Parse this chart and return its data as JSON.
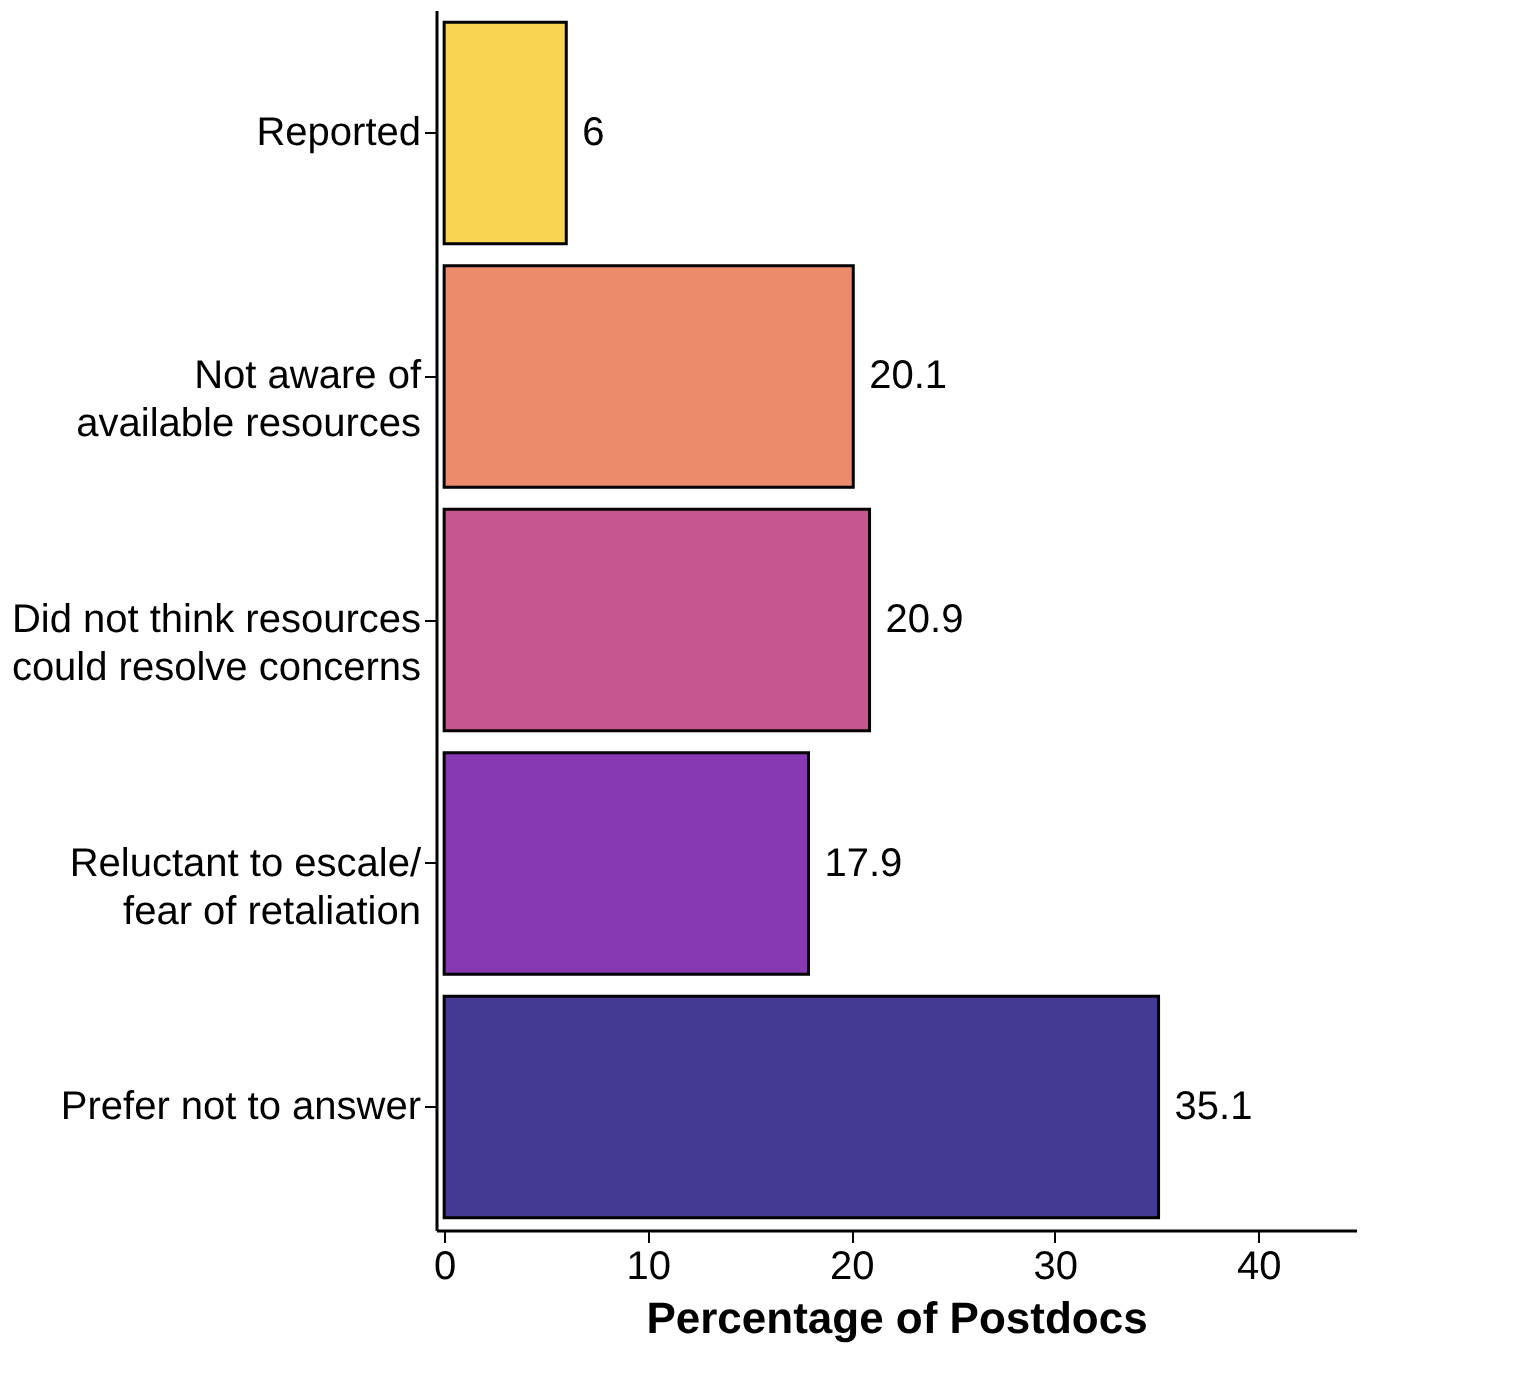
{
  "chart_data": {
    "type": "bar",
    "orientation": "horizontal",
    "xlabel": "Percentage of Postdocs",
    "categories": [
      "Reported",
      "Not aware of\navailable resources",
      "Did not think resources\ncould resolve concerns",
      "Reluctant to escale/\nfear of retaliation",
      "Prefer not to answer"
    ],
    "values": [
      6,
      20.1,
      20.9,
      17.9,
      35.1
    ],
    "colors": [
      "#f9d453",
      "#ec8a6c",
      "#c5568f",
      "#8639b0",
      "#453a93"
    ],
    "xlim": [
      -0.4,
      44.8
    ],
    "xticks": [
      0,
      10,
      20,
      30,
      40
    ],
    "data_labels": true
  }
}
